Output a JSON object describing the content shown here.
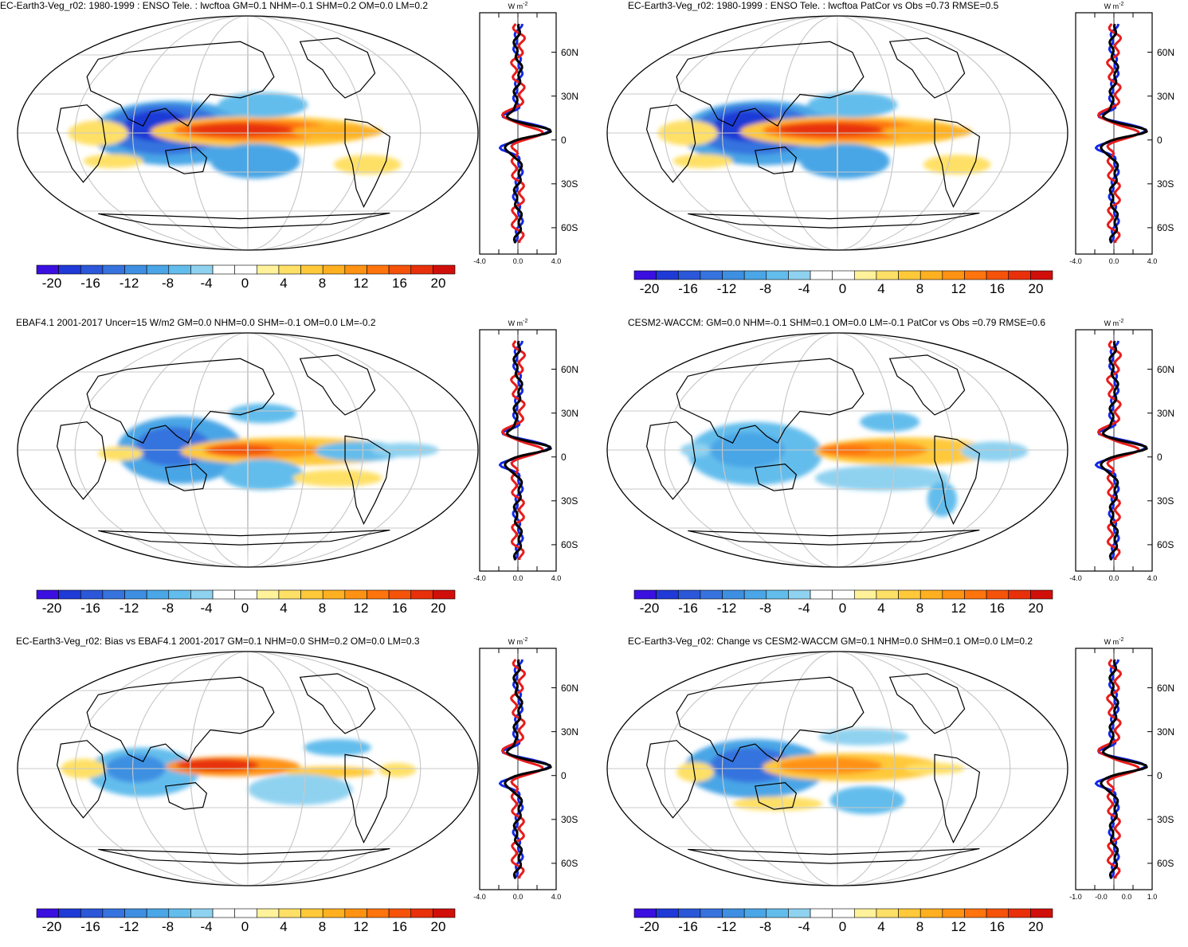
{
  "colors": {
    "palette": [
      "#3a0fe0",
      "#1f3ad6",
      "#2b57d8",
      "#3673de",
      "#3e8fe2",
      "#4aa6e6",
      "#63bdec",
      "#8fd2f0",
      "#ffffff",
      "#ffffff",
      "#fff29a",
      "#ffe066",
      "#ffc93a",
      "#ffb020",
      "#ff9212",
      "#ff740c",
      "#f5520a",
      "#e8300a",
      "#d10f0a"
    ],
    "obs_line": "#e81c1c",
    "model_line": "#1428e8",
    "mean_line": "#000000",
    "coast": "#000000",
    "grid": "#c8c8c8"
  },
  "colorbar_labels": [
    "-20",
    "-16",
    "-12",
    "-8",
    "-4",
    "0",
    "4",
    "8",
    "12",
    "16",
    "20"
  ],
  "lat_labels": [
    "60N",
    "30N",
    "0",
    "30S",
    "60S"
  ],
  "unit": "W m",
  "unit_sup": "-2",
  "panels": [
    {
      "title": "EC-Earth3-Veg_r02: 1980-1999 : ENSO Tele. : lwcftoa GM=0.1 NHM=-0.1 SHM=0.2 OM=0.0 LM=0.2",
      "x_ticks": [
        "-4.0",
        "0.0",
        "4.0"
      ],
      "pattern": "model"
    },
    {
      "title": "EC-Earth3-Veg_r02: 1980-1999 : ENSO Tele. : lwcftoa PatCor vs Obs =0.73 RMSE=0.5",
      "x_ticks": [
        "-4.0",
        "0.0",
        "4.0"
      ],
      "pattern": "model"
    },
    {
      "title": "EBAF4.1 2001-2017 Uncer=15 W/m2 GM=0.0 NHM=0.0 SHM=-0.1 OM=0.0 LM=-0.2",
      "x_ticks": [
        "-4.0",
        "0.0",
        "4.0"
      ],
      "pattern": "obs"
    },
    {
      "title": "CESM2-WACCM: GM=0.0 NHM=-0.1 SHM=0.1 OM=0.0 LM=-0.1 PatCor vs Obs =0.79 RMSE=0.6",
      "x_ticks": [
        "-4.0",
        "0.0",
        "4.0"
      ],
      "pattern": "cesm"
    },
    {
      "title": "EC-Earth3-Veg_r02: Bias vs EBAF4.1 2001-2017 GM=0.1 NHM=0.0 SHM=0.2 OM=0.0 LM=0.3",
      "x_ticks": [
        "-4.0",
        "0.0",
        "4.0"
      ],
      "pattern": "bias"
    },
    {
      "title": "EC-Earth3-Veg_r02: Change vs CESM2-WACCM GM=0.1 NHM=0.0 SHM=0.1 OM=0.0 LM=0.2",
      "x_ticks": [
        "-1.0",
        "-0.0",
        "0.0",
        "1.0"
      ],
      "pattern": "change"
    }
  ]
}
